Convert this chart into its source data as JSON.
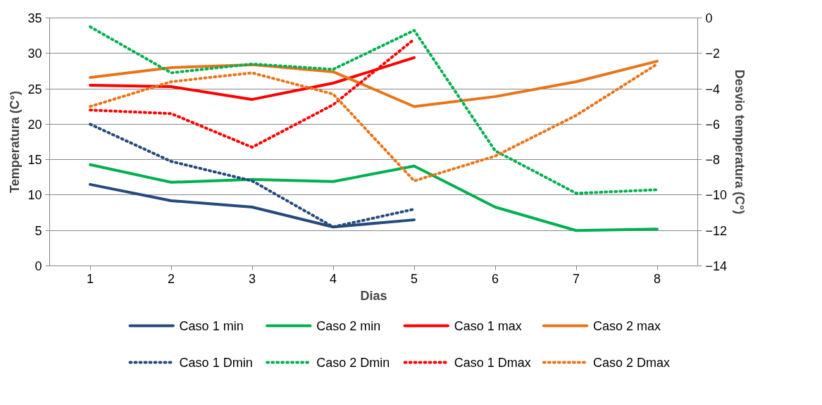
{
  "chart_data": {
    "type": "line",
    "xlabel": "Dias",
    "ylabel": "Temperatura (C°)",
    "y2label": "Desvio temperatura (C°)",
    "categories": [
      "1",
      "2",
      "3",
      "4",
      "5",
      "6",
      "7",
      "8"
    ],
    "ylim": [
      0,
      35
    ],
    "yticks": [
      0,
      5,
      10,
      15,
      20,
      25,
      30,
      35
    ],
    "y2lim": [
      -14,
      0
    ],
    "y2ticks": [
      -14,
      -12,
      -10,
      -8,
      -6,
      -4,
      -2,
      0
    ],
    "grid": "y",
    "legend": "bottom",
    "marker": "none",
    "series": [
      {
        "name": "Caso 1 min",
        "color": "#254a7c",
        "line_style": "solid",
        "values": [
          11.5,
          9.2,
          8.3,
          5.5,
          6.5,
          null,
          null,
          null
        ]
      },
      {
        "name": "Caso 2 min",
        "color": "#00b050",
        "line_style": "solid",
        "values": [
          14.3,
          11.8,
          12.2,
          11.9,
          14.1,
          8.3,
          5.0,
          5.2
        ]
      },
      {
        "name": "Caso 1 max",
        "color": "#ff0000",
        "line_style": "solid",
        "values": [
          25.5,
          25.3,
          23.5,
          25.8,
          29.4,
          null,
          null,
          null
        ]
      },
      {
        "name": "Caso 2 max",
        "color": "#e8751a",
        "line_style": "solid",
        "values": [
          26.6,
          28.0,
          28.4,
          27.4,
          22.5,
          23.9,
          26.0,
          28.9
        ]
      },
      {
        "name": "Caso 1 Dmin",
        "color": "#254a7c",
        "line_style": "dotted",
        "axis": "y2",
        "values": [
          -6.0,
          -8.1,
          -9.2,
          -11.8,
          -10.8,
          null,
          null,
          null
        ]
      },
      {
        "name": "Caso 2 Dmin",
        "color": "#00b050",
        "line_style": "dotted",
        "axis": "y2",
        "values": [
          -0.5,
          -3.1,
          -2.6,
          -2.9,
          -0.7,
          -7.5,
          -9.9,
          -9.7
        ]
      },
      {
        "name": "Caso 1 Dmax",
        "color": "#ff0000",
        "line_style": "dotted",
        "axis": "y2",
        "values": [
          -5.2,
          -5.4,
          -7.3,
          -4.9,
          -1.2,
          null,
          null,
          null
        ]
      },
      {
        "name": "Caso 2 Dmax",
        "color": "#e8751a",
        "line_style": "dotted",
        "axis": "y2",
        "values": [
          -5.0,
          -3.6,
          -3.1,
          -4.3,
          -9.2,
          -7.8,
          -5.5,
          -2.6
        ]
      }
    ]
  }
}
